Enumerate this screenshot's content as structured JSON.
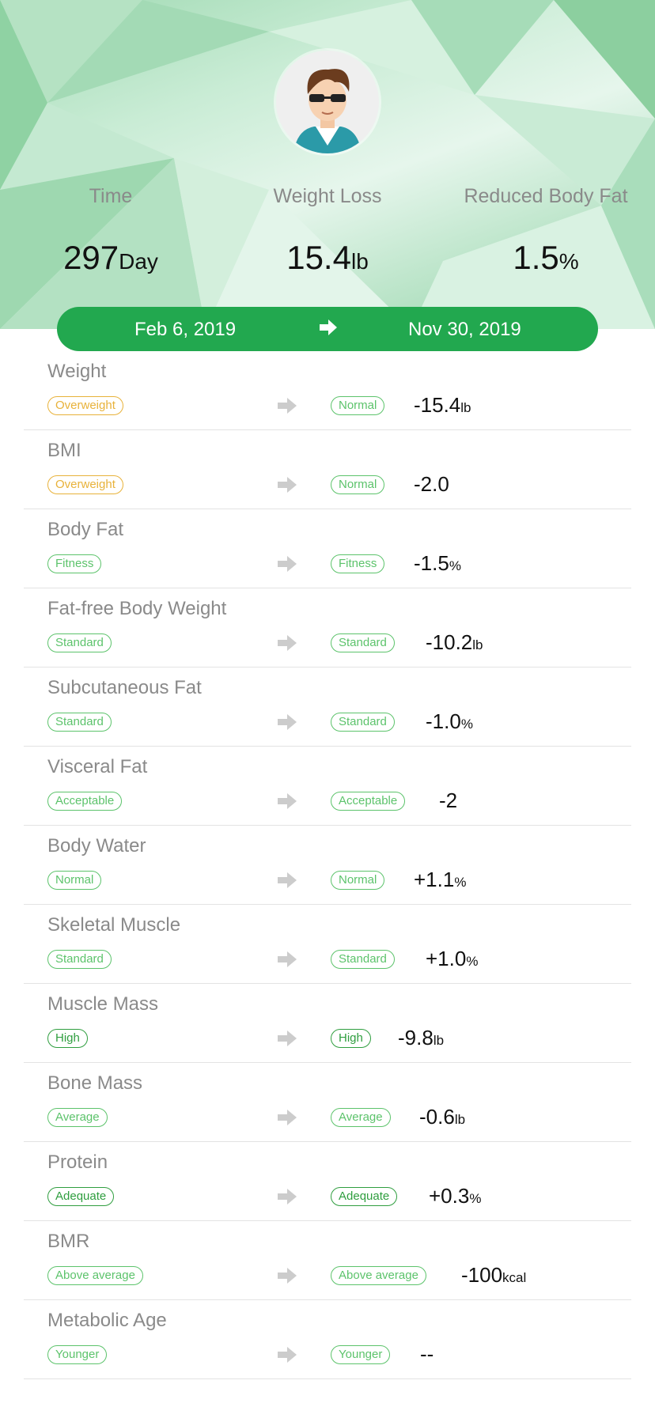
{
  "stats": [
    {
      "label": "Time",
      "value": "297",
      "unit": "Day"
    },
    {
      "label": "Weight Loss",
      "value": "15.4",
      "unit": "lb"
    },
    {
      "label": "Reduced Body Fat",
      "value": "1.5",
      "unit": "%"
    }
  ],
  "dates": {
    "start": "Feb 6, 2019",
    "end": "Nov 30, 2019"
  },
  "colors": {
    "accent": "#22a84f",
    "tag_green": "#5cc36b",
    "tag_dark_green": "#2f9e3f",
    "tag_orange": "#e8b23a",
    "arrow_gray": "#cccccc"
  },
  "metrics": [
    {
      "title": "Weight",
      "from": "Overweight",
      "from_color": "#e8b23a",
      "to": "Normal",
      "to_color": "#5cc36b",
      "delta": "-15.4",
      "unit": "lb"
    },
    {
      "title": "BMI",
      "from": "Overweight",
      "from_color": "#e8b23a",
      "to": "Normal",
      "to_color": "#5cc36b",
      "delta": "-2.0",
      "unit": ""
    },
    {
      "title": "Body Fat",
      "from": "Fitness",
      "from_color": "#5cc36b",
      "to": "Fitness",
      "to_color": "#5cc36b",
      "delta": "-1.5",
      "unit": "%"
    },
    {
      "title": "Fat-free Body Weight",
      "from": "Standard",
      "from_color": "#5cc36b",
      "to": "Standard",
      "to_color": "#5cc36b",
      "delta": "-10.2",
      "unit": "lb"
    },
    {
      "title": "Subcutaneous Fat",
      "from": "Standard",
      "from_color": "#5cc36b",
      "to": "Standard",
      "to_color": "#5cc36b",
      "delta": "-1.0",
      "unit": "%"
    },
    {
      "title": "Visceral Fat",
      "from": "Acceptable",
      "from_color": "#5cc36b",
      "to": "Acceptable",
      "to_color": "#5cc36b",
      "delta": "-2",
      "unit": ""
    },
    {
      "title": "Body Water",
      "from": "Normal",
      "from_color": "#5cc36b",
      "to": "Normal",
      "to_color": "#5cc36b",
      "delta": "+1.1",
      "unit": "%"
    },
    {
      "title": "Skeletal Muscle",
      "from": "Standard",
      "from_color": "#5cc36b",
      "to": "Standard",
      "to_color": "#5cc36b",
      "delta": "+1.0",
      "unit": "%"
    },
    {
      "title": "Muscle Mass",
      "from": "High",
      "from_color": "#2f9e3f",
      "to": "High",
      "to_color": "#2f9e3f",
      "delta": "-9.8",
      "unit": "lb"
    },
    {
      "title": "Bone Mass",
      "from": "Average",
      "from_color": "#5cc36b",
      "to": "Average",
      "to_color": "#5cc36b",
      "delta": "-0.6",
      "unit": "lb"
    },
    {
      "title": "Protein",
      "from": "Adequate",
      "from_color": "#2f9e3f",
      "to": "Adequate",
      "to_color": "#2f9e3f",
      "delta": "+0.3",
      "unit": "%"
    },
    {
      "title": "BMR",
      "from": "Above average",
      "from_color": "#5cc36b",
      "to": "Above average",
      "to_color": "#5cc36b",
      "delta": "-100",
      "unit": "kcal"
    },
    {
      "title": "Metabolic Age",
      "from": "Younger",
      "from_color": "#5cc36b",
      "to": "Younger",
      "to_color": "#5cc36b",
      "delta": "--",
      "unit": ""
    }
  ]
}
